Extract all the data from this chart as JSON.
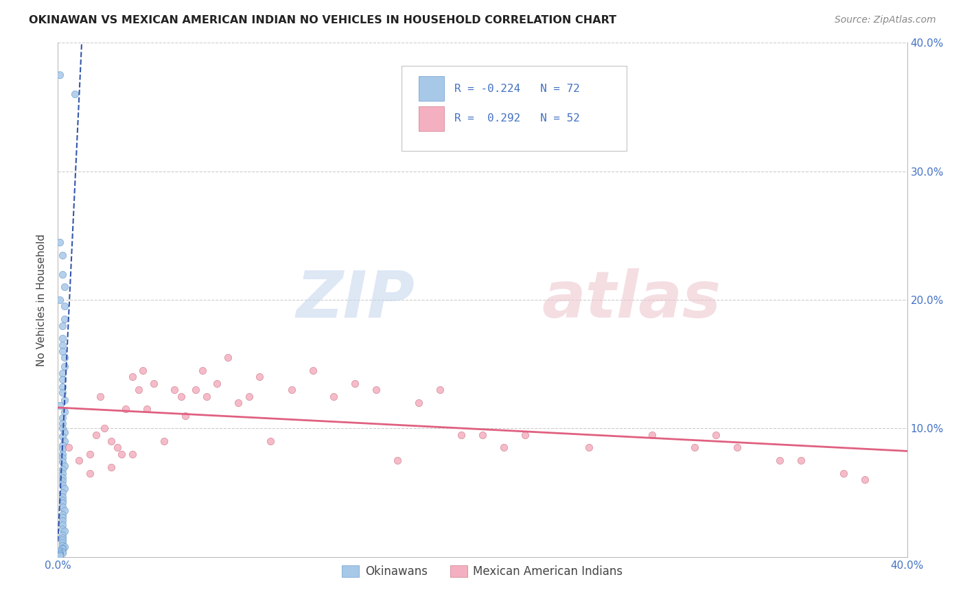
{
  "title": "OKINAWAN VS MEXICAN AMERICAN INDIAN NO VEHICLES IN HOUSEHOLD CORRELATION CHART",
  "source": "Source: ZipAtlas.com",
  "ylabel": "No Vehicles in Household",
  "xlim": [
    0.0,
    0.4
  ],
  "ylim": [
    0.0,
    0.4
  ],
  "color_blue": "#a8c8e8",
  "color_pink": "#f4b0c0",
  "color_blue_line": "#3355aa",
  "color_pink_line": "#e06080",
  "background_color": "#ffffff",
  "okinawan_x": [
    0.001,
    0.008,
    0.001,
    0.002,
    0.002,
    0.003,
    0.001,
    0.003,
    0.003,
    0.002,
    0.002,
    0.002,
    0.002,
    0.003,
    0.003,
    0.002,
    0.002,
    0.002,
    0.002,
    0.003,
    0.001,
    0.003,
    0.002,
    0.002,
    0.002,
    0.003,
    0.002,
    0.003,
    0.002,
    0.002,
    0.002,
    0.002,
    0.002,
    0.003,
    0.002,
    0.002,
    0.002,
    0.002,
    0.002,
    0.003,
    0.002,
    0.002,
    0.002,
    0.002,
    0.002,
    0.003,
    0.002,
    0.002,
    0.002,
    0.002,
    0.002,
    0.003,
    0.002,
    0.002,
    0.002,
    0.002,
    0.002,
    0.003,
    0.002,
    0.002,
    0.001,
    0.002,
    0.001,
    0.002,
    0.001,
    0.001,
    0.001,
    0.001,
    0.001,
    0.001,
    0.001,
    0.001
  ],
  "okinawan_y": [
    0.375,
    0.36,
    0.245,
    0.235,
    0.22,
    0.21,
    0.2,
    0.195,
    0.185,
    0.18,
    0.17,
    0.165,
    0.16,
    0.155,
    0.148,
    0.143,
    0.138,
    0.132,
    0.128,
    0.122,
    0.118,
    0.113,
    0.108,
    0.104,
    0.1,
    0.097,
    0.094,
    0.09,
    0.087,
    0.084,
    0.08,
    0.077,
    0.074,
    0.071,
    0.068,
    0.065,
    0.062,
    0.059,
    0.056,
    0.053,
    0.05,
    0.047,
    0.044,
    0.042,
    0.039,
    0.036,
    0.033,
    0.031,
    0.028,
    0.025,
    0.022,
    0.02,
    0.017,
    0.015,
    0.013,
    0.011,
    0.009,
    0.008,
    0.007,
    0.006,
    0.005,
    0.004,
    0.004,
    0.003,
    0.003,
    0.002,
    0.002,
    0.002,
    0.001,
    0.001,
    0.001,
    0.001
  ],
  "mexican_x": [
    0.005,
    0.01,
    0.015,
    0.018,
    0.02,
    0.022,
    0.025,
    0.028,
    0.03,
    0.032,
    0.035,
    0.038,
    0.04,
    0.042,
    0.045,
    0.05,
    0.055,
    0.058,
    0.06,
    0.065,
    0.068,
    0.07,
    0.075,
    0.08,
    0.085,
    0.09,
    0.095,
    0.1,
    0.11,
    0.12,
    0.13,
    0.14,
    0.15,
    0.16,
    0.17,
    0.18,
    0.19,
    0.2,
    0.21,
    0.22,
    0.25,
    0.28,
    0.3,
    0.31,
    0.32,
    0.34,
    0.35,
    0.37,
    0.38,
    0.015,
    0.025,
    0.035
  ],
  "mexican_y": [
    0.085,
    0.075,
    0.08,
    0.095,
    0.125,
    0.1,
    0.09,
    0.085,
    0.08,
    0.115,
    0.14,
    0.13,
    0.145,
    0.115,
    0.135,
    0.09,
    0.13,
    0.125,
    0.11,
    0.13,
    0.145,
    0.125,
    0.135,
    0.155,
    0.12,
    0.125,
    0.14,
    0.09,
    0.13,
    0.145,
    0.125,
    0.135,
    0.13,
    0.075,
    0.12,
    0.13,
    0.095,
    0.095,
    0.085,
    0.095,
    0.085,
    0.095,
    0.085,
    0.095,
    0.085,
    0.075,
    0.075,
    0.065,
    0.06,
    0.065,
    0.07,
    0.08
  ]
}
